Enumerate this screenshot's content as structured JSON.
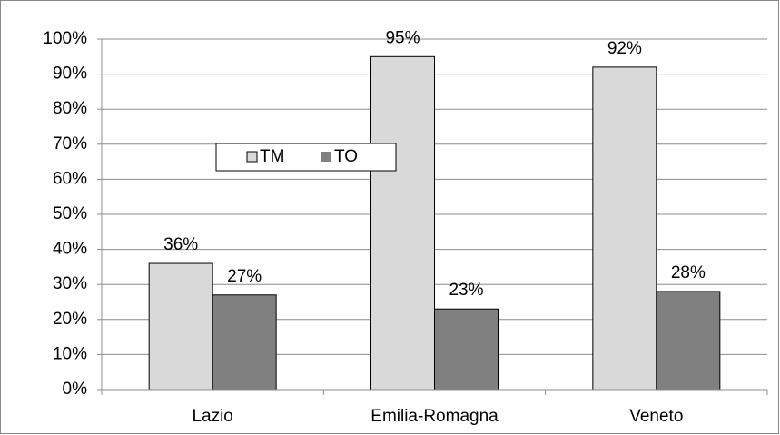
{
  "chart_data": {
    "type": "bar",
    "categories": [
      "Lazio",
      "Emilia-Romagna",
      "Veneto"
    ],
    "series": [
      {
        "name": "TM",
        "color": "#d9d9d9",
        "values": [
          36,
          95,
          92
        ],
        "value_labels": [
          "36%",
          "95%",
          "92%"
        ]
      },
      {
        "name": "TO",
        "color": "#808080",
        "values": [
          27,
          23,
          28
        ],
        "value_labels": [
          "27%",
          "23%",
          "28%"
        ]
      }
    ],
    "ylim": [
      0,
      100
    ],
    "yticks": [
      {
        "value": 0,
        "label": "0%"
      },
      {
        "value": 10,
        "label": "10%"
      },
      {
        "value": 20,
        "label": "20%"
      },
      {
        "value": 30,
        "label": "30%"
      },
      {
        "value": 40,
        "label": "40%"
      },
      {
        "value": 50,
        "label": "50%"
      },
      {
        "value": 60,
        "label": "60%"
      },
      {
        "value": 70,
        "label": "70%"
      },
      {
        "value": 80,
        "label": "80%"
      },
      {
        "value": 90,
        "label": "90%"
      },
      {
        "value": 100,
        "label": "100%"
      }
    ],
    "grid": true
  }
}
